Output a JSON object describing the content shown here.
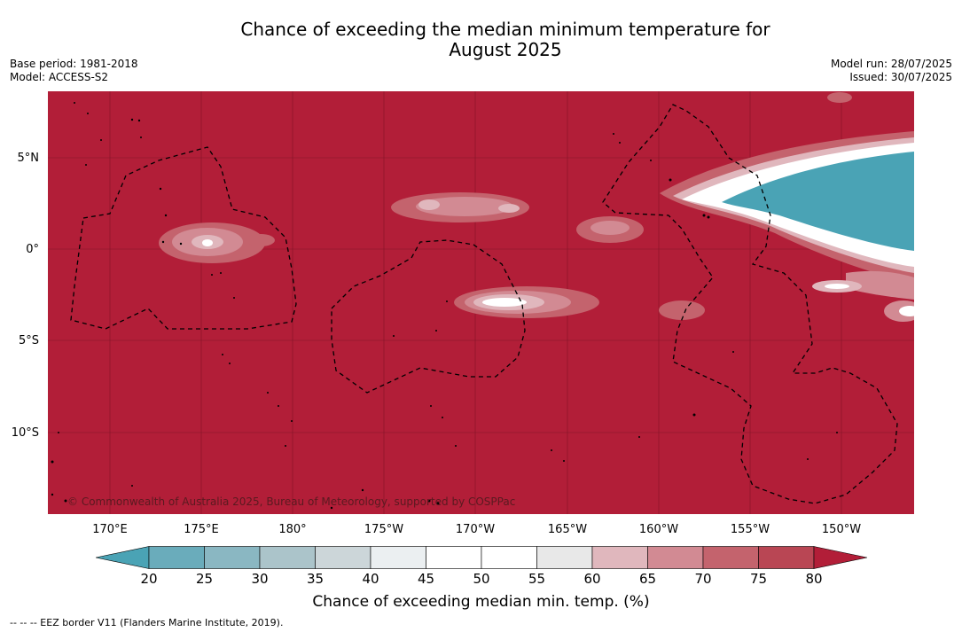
{
  "title_line1": "Chance of exceeding the median minimum temperature for",
  "title_line2": "August 2025",
  "base_period": "Base period: 1981-2018",
  "model": "Model: ACCESS-S2",
  "model_run": "Model run: 28/07/2025",
  "issued": "Issued: 30/07/2025",
  "copyright": "© Commonwealth of Australia 2025, Bureau of Meteorology, supported by COSPPac",
  "lat_labels": [
    "5°N",
    "0°",
    "5°S",
    "10°S"
  ],
  "lon_labels": [
    "170°E",
    "175°E",
    "180°",
    "175°W",
    "170°W",
    "165°W",
    "160°W",
    "155°W",
    "150°W"
  ],
  "colorbar": {
    "ticks": [
      "20",
      "25",
      "30",
      "35",
      "40",
      "45",
      "50",
      "55",
      "60",
      "65",
      "70",
      "75",
      "80"
    ],
    "colors": [
      "#4aa3b5",
      "#6aacbb",
      "#8ab7c2",
      "#abc4ca",
      "#ccd6d9",
      "#ebeff1",
      "#ffffff",
      "#ffffff",
      "#e8e8e8",
      "#e0b7bd",
      "#d28a93",
      "#c4636d",
      "#b94654",
      "#b21e38"
    ],
    "label": "Chance of exceeding median min. temp. (%)"
  },
  "footer": "--  --  -- EEZ border V11 (Flanders Marine Institute, 2019).",
  "colors": {
    "background_red": "#b21e38",
    "teal": "#4aa3b5"
  }
}
